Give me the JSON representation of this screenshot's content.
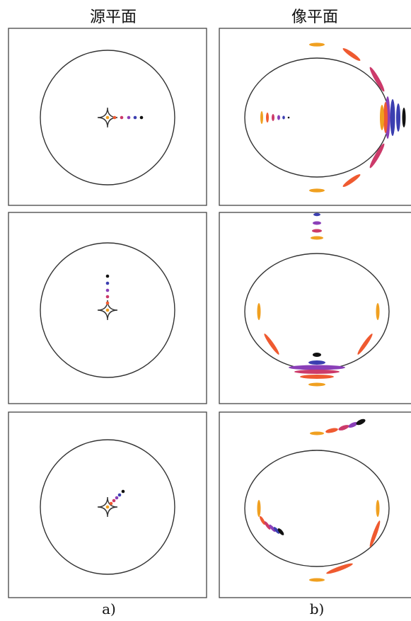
{
  "titles": {
    "source_plane": "源平面",
    "image_plane": "像平面"
  },
  "labels": {
    "a": "a)",
    "b": "b)"
  },
  "colors": {
    "palette": [
      "#f0a020",
      "#ef5a30",
      "#cc3a6a",
      "#8a3fb8",
      "#3b3fb0",
      "#111111"
    ]
  }
}
